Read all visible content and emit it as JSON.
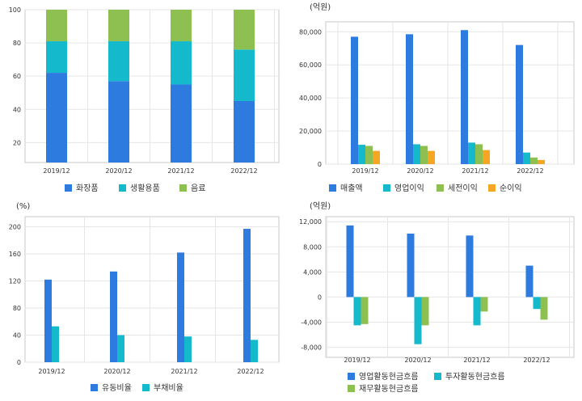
{
  "colors": {
    "blue": "#2e7be0",
    "cyan": "#14b9cc",
    "green": "#8dc050",
    "orange": "#f5a623",
    "grid": "#e6e6e6",
    "frame": "#c8c8c8",
    "plot_bg": "#ffffff",
    "text": "#333333"
  },
  "chart_data": [
    {
      "id": "product-mix",
      "type": "bar",
      "stacked": true,
      "unit": "",
      "categories": [
        "2019/12",
        "2020/12",
        "2021/12",
        "2022/12"
      ],
      "series": [
        {
          "name": "화장품",
          "color_key": "blue",
          "values": [
            62,
            57,
            55,
            45
          ]
        },
        {
          "name": "생활용품",
          "color_key": "cyan",
          "values": [
            19,
            24,
            26,
            31
          ]
        },
        {
          "name": "음료",
          "color_key": "green",
          "values": [
            19,
            19,
            19,
            24
          ]
        }
      ],
      "yticks": [
        20,
        40,
        60,
        80,
        100
      ],
      "ylim": [
        8,
        100
      ],
      "grid": true,
      "legend": "bottom"
    },
    {
      "id": "income",
      "type": "bar",
      "unit": "(억원)",
      "categories": [
        "2019/12",
        "2020/12",
        "2021/12",
        "2022/12"
      ],
      "series": [
        {
          "name": "매출액",
          "color_key": "blue",
          "values": [
            77000,
            78500,
            81000,
            72000
          ]
        },
        {
          "name": "영업이익",
          "color_key": "cyan",
          "values": [
            11700,
            12000,
            13000,
            7000
          ]
        },
        {
          "name": "세전이익",
          "color_key": "green",
          "values": [
            11000,
            11000,
            12000,
            4000
          ]
        },
        {
          "name": "순이익",
          "color_key": "orange",
          "values": [
            8000,
            8000,
            8500,
            2500
          ]
        }
      ],
      "yticks": [
        "0",
        "20,000",
        "40,000",
        "60,000",
        "80,000"
      ],
      "ytick_values": [
        0,
        20000,
        40000,
        60000,
        80000
      ],
      "ylim": [
        0,
        86000
      ],
      "grid": true,
      "legend": "bottom"
    },
    {
      "id": "ratios",
      "type": "bar",
      "unit": "(%)",
      "categories": [
        "2019/12",
        "2020/12",
        "2021/12",
        "2022/12"
      ],
      "series": [
        {
          "name": "유동비율",
          "color_key": "blue",
          "values": [
            122,
            134,
            162,
            197
          ]
        },
        {
          "name": "부채비율",
          "color_key": "cyan",
          "values": [
            53,
            40,
            38,
            33
          ]
        }
      ],
      "yticks": [
        "0",
        "40",
        "80",
        "120",
        "160",
        "200"
      ],
      "ytick_values": [
        0,
        40,
        80,
        120,
        160,
        200
      ],
      "ylim": [
        0,
        215
      ],
      "grid": true,
      "legend": "bottom"
    },
    {
      "id": "cashflow",
      "type": "bar",
      "unit": "(억원)",
      "categories": [
        "2019/12",
        "2020/12",
        "2021/12",
        "2022/12"
      ],
      "series": [
        {
          "name": "영업활동현금흐름",
          "color_key": "blue",
          "values": [
            11400,
            10100,
            9800,
            5000
          ]
        },
        {
          "name": "투자활동현금흐름",
          "color_key": "cyan",
          "values": [
            -4500,
            -7500,
            -4500,
            -1900
          ]
        },
        {
          "name": "재무활동현금흐름",
          "color_key": "green",
          "values": [
            -4300,
            -4500,
            -2300,
            -3600
          ]
        }
      ],
      "yticks": [
        "-8,000",
        "-4,000",
        "0",
        "4,000",
        "8,000",
        "12,000"
      ],
      "ytick_values": [
        -8000,
        -4000,
        0,
        4000,
        8000,
        12000
      ],
      "ylim": [
        -9600,
        12800
      ],
      "grid": true,
      "legend": "bottom"
    }
  ]
}
